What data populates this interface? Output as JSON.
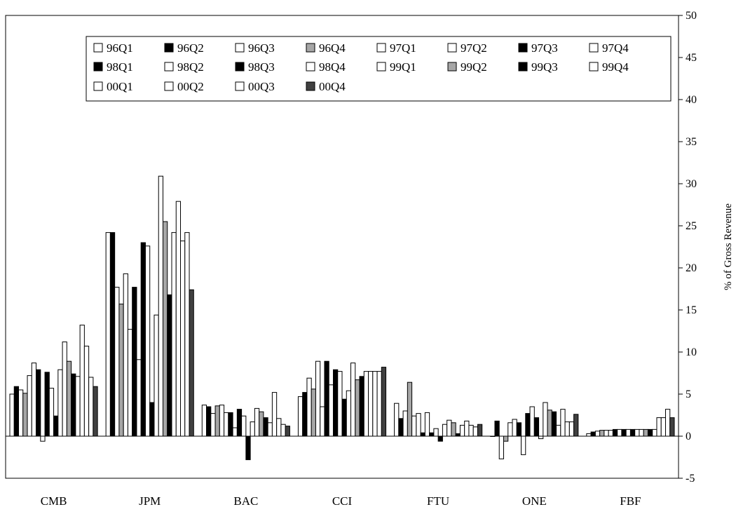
{
  "chart_data": {
    "type": "bar",
    "categories": [
      "CMB",
      "JPM",
      "BAC",
      "CCI",
      "FTU",
      "ONE",
      "FBF"
    ],
    "ylabel": "% of Gross Revenue",
    "ylim": [
      -5,
      50
    ],
    "yticks": [
      -5,
      0,
      5,
      10,
      15,
      20,
      25,
      30,
      35,
      40,
      45,
      50
    ],
    "y_axis_side": "right",
    "grid": false,
    "legend_position": "top-left",
    "legend_columns": 8,
    "series": [
      {
        "name": "96Q1",
        "color": "#ffffff",
        "values": [
          5.0,
          24.2,
          3.7,
          4.7,
          3.9,
          0.0,
          0.3
        ]
      },
      {
        "name": "96Q2",
        "color": "#000000",
        "values": [
          5.9,
          24.2,
          3.5,
          5.2,
          2.1,
          1.8,
          0.5
        ]
      },
      {
        "name": "96Q3",
        "color": "#ffffff",
        "values": [
          5.5,
          17.7,
          2.7,
          6.9,
          3.0,
          -2.7,
          0.6
        ]
      },
      {
        "name": "96Q4",
        "color": "#a6a6a6",
        "values": [
          5.1,
          15.7,
          3.6,
          5.6,
          6.4,
          -0.6,
          0.7
        ]
      },
      {
        "name": "97Q1",
        "color": "#ffffff",
        "values": [
          7.2,
          19.3,
          3.7,
          8.9,
          2.4,
          1.6,
          0.7
        ]
      },
      {
        "name": "97Q2",
        "color": "#ffffff",
        "values": [
          8.7,
          12.7,
          2.8,
          3.5,
          2.7,
          2.0,
          0.7
        ]
      },
      {
        "name": "97Q3",
        "color": "#000000",
        "values": [
          7.9,
          17.7,
          2.8,
          8.9,
          0.4,
          1.6,
          0.8
        ]
      },
      {
        "name": "97Q4",
        "color": "#ffffff",
        "values": [
          -0.6,
          9.1,
          1.0,
          6.1,
          2.8,
          -2.2,
          0.8
        ]
      },
      {
        "name": "98Q1",
        "color": "#000000",
        "values": [
          7.6,
          23.0,
          3.2,
          7.9,
          0.4,
          2.7,
          0.8
        ]
      },
      {
        "name": "98Q2",
        "color": "#ffffff",
        "values": [
          5.7,
          22.6,
          2.4,
          7.7,
          0.9,
          3.5,
          0.8
        ]
      },
      {
        "name": "98Q3",
        "color": "#000000",
        "values": [
          2.4,
          4.0,
          -2.8,
          4.4,
          -0.6,
          2.2,
          0.8
        ]
      },
      {
        "name": "98Q4",
        "color": "#ffffff",
        "values": [
          7.9,
          14.4,
          1.7,
          5.4,
          1.4,
          -0.3,
          0.8
        ]
      },
      {
        "name": "99Q1",
        "color": "#ffffff",
        "values": [
          11.2,
          30.9,
          3.3,
          8.7,
          1.9,
          4.0,
          0.8
        ]
      },
      {
        "name": "99Q2",
        "color": "#a6a6a6",
        "values": [
          8.9,
          25.5,
          2.9,
          6.7,
          1.6,
          3.1,
          0.8
        ]
      },
      {
        "name": "99Q3",
        "color": "#000000",
        "values": [
          7.4,
          16.8,
          2.2,
          7.1,
          0.3,
          2.9,
          0.8
        ]
      },
      {
        "name": "99Q4",
        "color": "#ffffff",
        "values": [
          7.1,
          24.2,
          1.6,
          7.7,
          1.3,
          1.3,
          0.8
        ]
      },
      {
        "name": "00Q1",
        "color": "#ffffff",
        "values": [
          13.2,
          27.9,
          5.2,
          7.7,
          1.8,
          3.2,
          2.2
        ]
      },
      {
        "name": "00Q2",
        "color": "#ffffff",
        "values": [
          10.7,
          23.2,
          2.1,
          7.7,
          1.3,
          1.7,
          2.2
        ]
      },
      {
        "name": "00Q3",
        "color": "#ffffff",
        "values": [
          7.0,
          24.2,
          1.4,
          7.7,
          1.1,
          1.7,
          3.2
        ]
      },
      {
        "name": "00Q4",
        "color": "#404040",
        "values": [
          5.9,
          17.4,
          1.2,
          8.2,
          1.4,
          2.6,
          2.2
        ]
      }
    ],
    "legend_order": [
      1,
      8,
      2,
      9,
      3,
      10,
      4,
      11,
      5,
      12,
      6,
      13,
      7,
      14,
      15,
      16,
      17,
      18,
      19,
      20
    ]
  }
}
